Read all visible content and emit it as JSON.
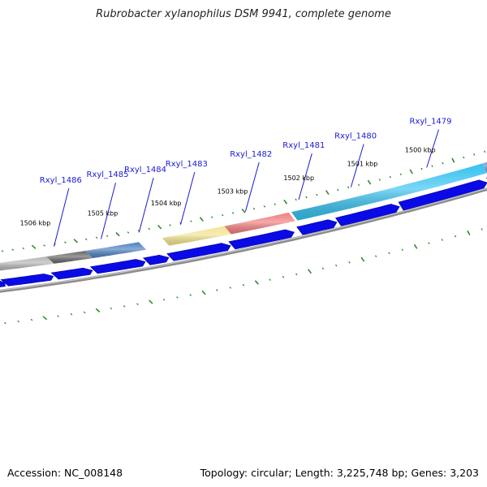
{
  "header": {
    "title": "Rubrobacter xylanophilus DSM 9941, complete genome"
  },
  "footer": {
    "accession": "Accession: NC_008148",
    "summary": "Topology: circular; Length: 3,225,748 bp; Genes: 3,203"
  },
  "genome_map": {
    "kbp_labels": [
      {
        "text": "1500 kbp",
        "at": 0.853
      },
      {
        "text": "1501 kbp",
        "at": 0.738
      },
      {
        "text": "1502 kbp",
        "at": 0.612
      },
      {
        "text": "1503 kbp",
        "at": 0.48
      },
      {
        "text": "1504 kbp",
        "at": 0.348
      },
      {
        "text": "1505 kbp",
        "at": 0.222
      },
      {
        "text": "1506 kbp",
        "at": 0.088
      }
    ],
    "gene_labels": [
      {
        "text": "Rxyl_1479",
        "at": 0.875
      },
      {
        "text": "Rxyl_1480",
        "at": 0.726
      },
      {
        "text": "Rxyl_1481",
        "at": 0.623
      },
      {
        "text": "Rxyl_1482",
        "at": 0.518
      },
      {
        "text": "Rxyl_1483",
        "at": 0.39
      },
      {
        "text": "Rxyl_1484",
        "at": 0.308
      },
      {
        "text": "Rxyl_1485",
        "at": 0.233
      },
      {
        "text": "Rxyl_1486",
        "at": 0.14
      }
    ],
    "colors": {
      "cds": "#0a0ae6",
      "backbone": "#8c8c8c",
      "tick": "#2e8b2e",
      "label": "#1a1ad2",
      "leader": "#1a1ad2"
    },
    "cog_segments": [
      {
        "from": 0.0,
        "to": 0.108,
        "color": "#b4b4b4"
      },
      {
        "from": 0.108,
        "to": 0.185,
        "color": "#646464"
      },
      {
        "from": 0.185,
        "to": 0.292,
        "color": "#4a7fbf"
      },
      {
        "from": 0.338,
        "to": 0.462,
        "color": "#f3e38d"
      },
      {
        "from": 0.462,
        "to": 0.59,
        "color": "#f07c7c"
      },
      {
        "from": 0.595,
        "to": 0.975,
        "color": "#35c1ef"
      },
      {
        "from": 0.975,
        "to": 1.0,
        "color": "#6a8fb8"
      }
    ],
    "cds_arrows": [
      {
        "from": 0.0,
        "to": 0.018
      },
      {
        "from": 0.018,
        "to": 0.115
      },
      {
        "from": 0.118,
        "to": 0.193
      },
      {
        "from": 0.196,
        "to": 0.298
      },
      {
        "from": 0.301,
        "to": 0.345
      },
      {
        "from": 0.348,
        "to": 0.468
      },
      {
        "from": 0.471,
        "to": 0.595
      },
      {
        "from": 0.606,
        "to": 0.68
      },
      {
        "from": 0.683,
        "to": 0.805
      },
      {
        "from": 0.808,
        "to": 0.98
      },
      {
        "from": 0.983,
        "to": 1.0
      }
    ]
  }
}
